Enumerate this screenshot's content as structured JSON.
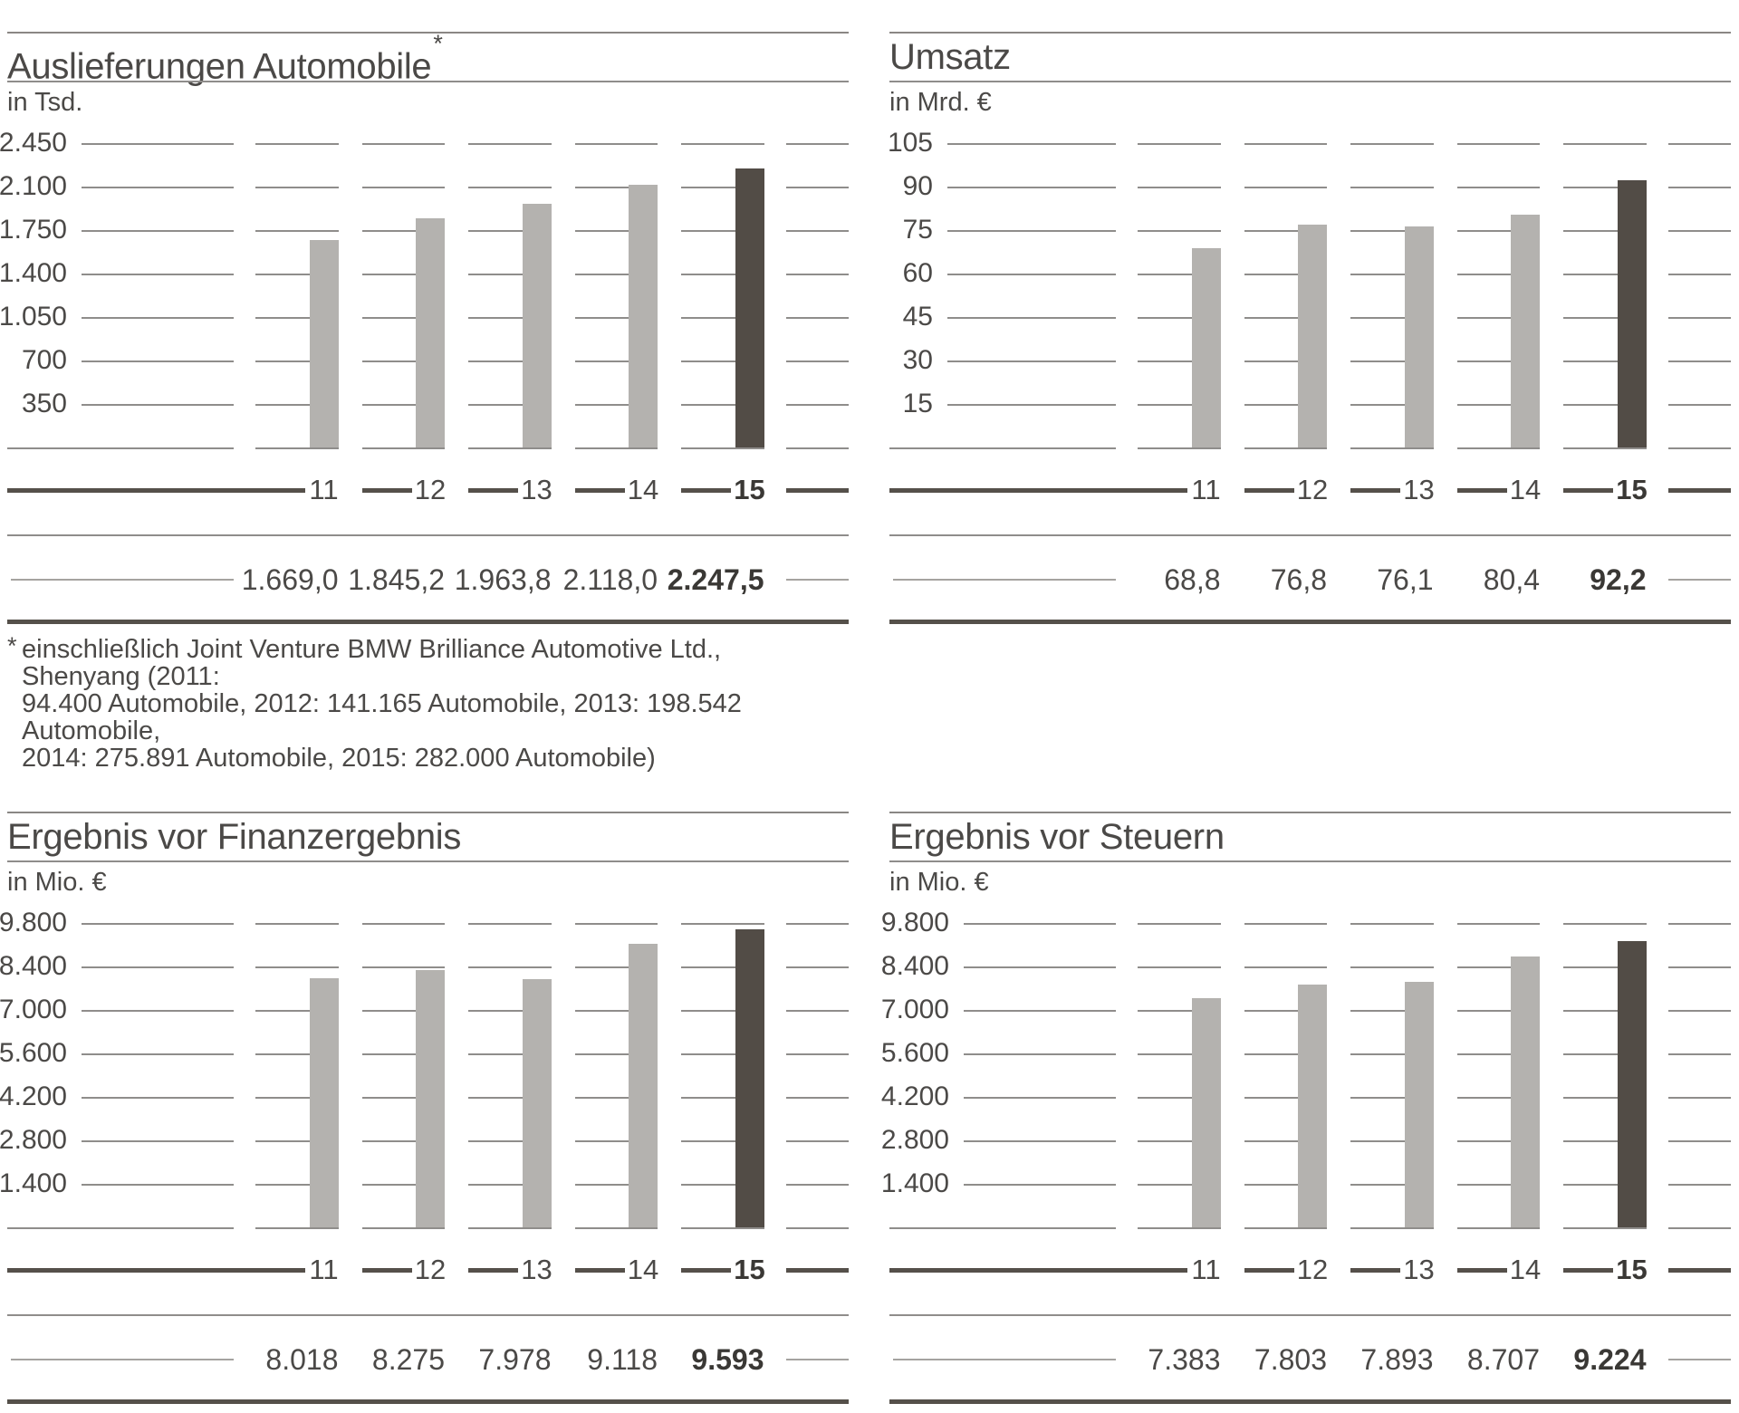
{
  "colors": {
    "bar_gray": "#b4b2af",
    "bar_dark": "#524c46",
    "thick_line": "#55504a",
    "grid_line": "#8f8d8b",
    "top_border": "#8a8784",
    "value_rule": "#a5a3a0",
    "text": "#4b4947"
  },
  "chart_data": [
    {
      "type": "bar",
      "title": "Auslieferungen Automobile",
      "title_marker": "*",
      "ylabel": "in Tsd.",
      "categories": [
        "11",
        "12",
        "13",
        "14",
        "15"
      ],
      "values": [
        1669.0,
        1845.2,
        1963.8,
        2118.0,
        2247.5
      ],
      "value_labels": [
        "1.669,0",
        "1.845,2",
        "1.963,8",
        "2.118,0",
        "2.247,5"
      ],
      "y_ticks": [
        "2.450",
        "2.100",
        "1.750",
        "1.400",
        "1.050",
        "700",
        "350"
      ],
      "ylim": [
        0,
        2450
      ],
      "y_step": 350,
      "grid": "on",
      "legend": "none",
      "highlight_last": true
    },
    {
      "type": "bar",
      "title": "Umsatz",
      "ylabel": "in Mrd. €",
      "categories": [
        "11",
        "12",
        "13",
        "14",
        "15"
      ],
      "values": [
        68.8,
        76.8,
        76.1,
        80.4,
        92.2
      ],
      "value_labels": [
        "68,8",
        "76,8",
        "76,1",
        "80,4",
        "92,2"
      ],
      "y_ticks": [
        "105",
        "90",
        "75",
        "60",
        "45",
        "30",
        "15"
      ],
      "ylim": [
        0,
        105
      ],
      "y_step": 15,
      "grid": "on",
      "legend": "none",
      "highlight_last": true
    },
    {
      "type": "bar",
      "title": "Ergebnis vor Finanzergebnis",
      "ylabel": "in Mio. €",
      "categories": [
        "11",
        "12",
        "13",
        "14",
        "15"
      ],
      "values": [
        8018,
        8275,
        7978,
        9118,
        9593
      ],
      "value_labels": [
        "8.018",
        "8.275",
        "7.978",
        "9.118",
        "9.593"
      ],
      "y_ticks": [
        "9.800",
        "8.400",
        "7.000",
        "5.600",
        "4.200",
        "2.800",
        "1.400"
      ],
      "ylim": [
        0,
        9800
      ],
      "y_step": 1400,
      "grid": "on",
      "legend": "none",
      "highlight_last": true
    },
    {
      "type": "bar",
      "title": "Ergebnis vor Steuern",
      "ylabel": "in Mio. €",
      "categories": [
        "11",
        "12",
        "13",
        "14",
        "15"
      ],
      "values": [
        7383,
        7803,
        7893,
        8707,
        9224
      ],
      "value_labels": [
        "7.383",
        "7.803",
        "7.893",
        "8.707",
        "9.224"
      ],
      "y_ticks": [
        "9.800",
        "8.400",
        "7.000",
        "5.600",
        "4.200",
        "2.800",
        "1.400"
      ],
      "ylim": [
        0,
        9800
      ],
      "y_step": 1400,
      "grid": "on",
      "legend": "none",
      "highlight_last": true
    }
  ],
  "footnote": {
    "marker": "*",
    "lines": [
      "einschließlich Joint Venture BMW Brilliance Automotive Ltd., Shenyang (2011:",
      "94.400 Automobile, 2012: 141.165 Automobile, 2013: 198.542 Automobile,",
      "2014: 275.891 Automobile, 2015: 282.000 Automobile)"
    ]
  }
}
